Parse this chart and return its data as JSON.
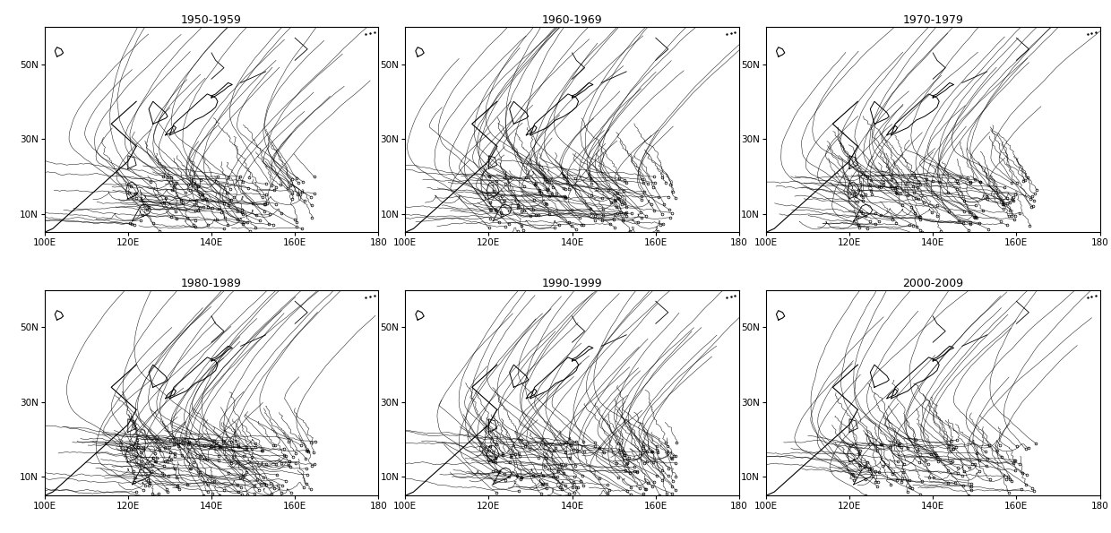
{
  "decades": [
    "1950-1959",
    "1960-1969",
    "1970-1979",
    "1980-1989",
    "1990-1999",
    "2000-2009"
  ],
  "lon_min": 100,
  "lon_max": 180,
  "lat_min": 5,
  "lat_max": 60,
  "xticks": [
    100,
    120,
    140,
    160,
    180
  ],
  "xtick_labels": [
    "100E",
    "120E",
    "140E",
    "160E",
    "180"
  ],
  "yticks": [
    10,
    30,
    50
  ],
  "ytick_labels": [
    "10N",
    "30N",
    "50N"
  ],
  "track_color": "#000000",
  "bg_color": "#ffffff",
  "line_width": 0.4,
  "seeds_per_decade": [
    120,
    140,
    130,
    150,
    145,
    110
  ],
  "random_seeds": [
    42,
    43,
    44,
    45,
    46,
    47
  ]
}
